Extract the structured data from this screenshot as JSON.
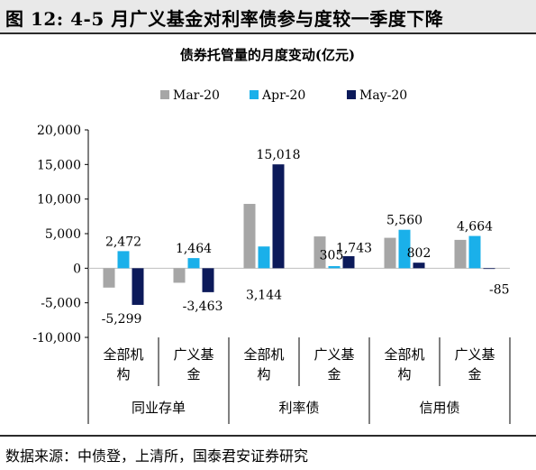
{
  "figure_title": "图 12:  4-5 月广义基金对利率债参与度较一季度下降",
  "source_note": "数据来源：中债登，上清所，国泰君安证券研究",
  "colors": {
    "Mar-20": "#a6a6a6",
    "Apr-20": "#1ab0ea",
    "May-20": "#0c1a5a"
  },
  "chart_data": {
    "type": "bar",
    "title": "债券托管量的月度变动(亿元)",
    "categories": [
      "全部机构",
      "广义基金",
      "全部机构",
      "广义基金",
      "全部机构",
      "广义基金"
    ],
    "category_lines": [
      [
        "全部机",
        "构"
      ],
      [
        "广义基",
        "金"
      ],
      [
        "全部机",
        "构"
      ],
      [
        "广义基",
        "金"
      ],
      [
        "全部机",
        "构"
      ],
      [
        "广义基",
        "金"
      ]
    ],
    "groups": [
      {
        "label": "同业存单",
        "span": [
          0,
          1
        ]
      },
      {
        "label": "利率债",
        "span": [
          2,
          3
        ]
      },
      {
        "label": "信用债",
        "span": [
          4,
          5
        ]
      }
    ],
    "series": [
      {
        "name": "Mar-20",
        "values": [
          -2800,
          -2100,
          9300,
          4600,
          4400,
          4100
        ]
      },
      {
        "name": "Apr-20",
        "values": [
          2472,
          1464,
          3144,
          305,
          5560,
          4664
        ]
      },
      {
        "name": "May-20",
        "values": [
          -5299,
          -3463,
          15018,
          1743,
          802,
          -85
        ]
      }
    ],
    "data_labels": [
      {
        "series": 1,
        "index": 0,
        "text": "2,472"
      },
      {
        "series": 2,
        "index": 0,
        "text": "-5,299"
      },
      {
        "series": 1,
        "index": 1,
        "text": "1,464"
      },
      {
        "series": 2,
        "index": 1,
        "text": "-3,463"
      },
      {
        "series": 2,
        "index": 2,
        "text": "15,018"
      },
      {
        "series": 1,
        "index": 2,
        "text": "3,144"
      },
      {
        "series": 1,
        "index": 3,
        "text": "305"
      },
      {
        "series": 2,
        "index": 3,
        "text": "1,743"
      },
      {
        "series": 1,
        "index": 4,
        "text": "5,560"
      },
      {
        "series": 2,
        "index": 4,
        "text": "802"
      },
      {
        "series": 1,
        "index": 5,
        "text": "4,664"
      },
      {
        "series": 2,
        "index": 5,
        "text": "-85"
      }
    ],
    "yticks": [
      20000,
      15000,
      10000,
      5000,
      0,
      -5000,
      -10000
    ],
    "ytick_labels": [
      "20,000",
      "15,000",
      "10,000",
      "5,000",
      "0",
      "-5,000",
      "-10,000"
    ],
    "ylim": [
      -10000,
      20000
    ],
    "legend_position": "top",
    "grid": false
  }
}
